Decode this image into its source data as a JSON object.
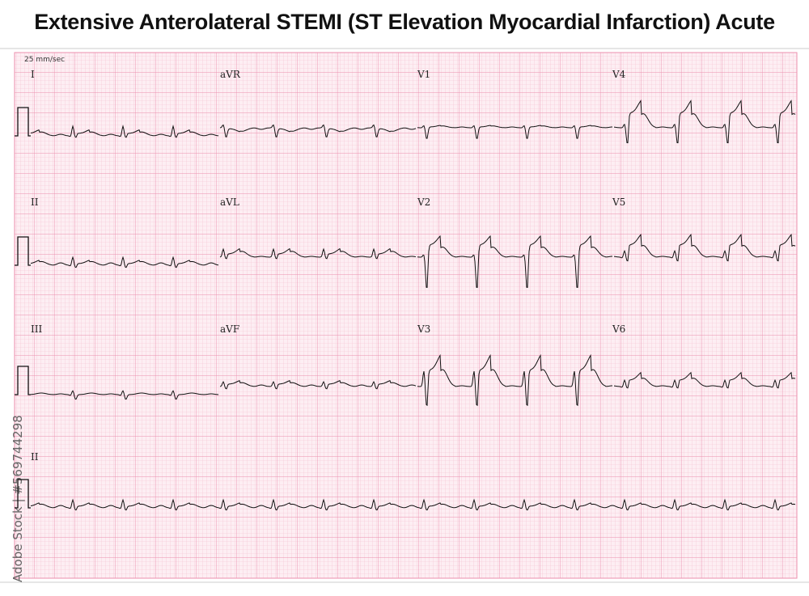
{
  "header": {
    "title": "Extensive Anterolateral STEMI (ST Elevation Myocardial Infarction) Acute"
  },
  "paper_speed": "25 mm/sec",
  "leads": [
    [
      "I",
      "aVR",
      "V1",
      "V4"
    ],
    [
      "II",
      "aVL",
      "V2",
      "V5"
    ],
    [
      "III",
      "aVF",
      "V3",
      "V6"
    ]
  ],
  "rhythm_lead": "II",
  "watermark": "Adobe Stock | #569744298"
}
